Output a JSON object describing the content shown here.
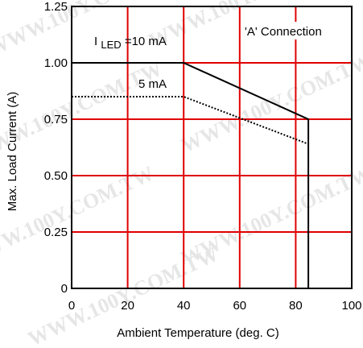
{
  "chart_data": {
    "type": "line",
    "xlabel": "Ambient Temperature (deg. C)",
    "ylabel": "Max. Load Current (A)",
    "xlim": [
      0,
      100
    ],
    "ylim": [
      0,
      1.25
    ],
    "xticks": [
      0,
      20,
      40,
      60,
      80,
      100
    ],
    "yticks": [
      0,
      0.25,
      0.5,
      0.75,
      1.0,
      1.25
    ],
    "xtick_labels": [
      "0",
      "20",
      "40",
      "60",
      "80",
      "100"
    ],
    "ytick_labels": [
      "0",
      "0.25",
      "0.50",
      "0.75",
      "1.00",
      "1.25"
    ],
    "grid": true,
    "grid_color": "#e00000",
    "series": [
      {
        "name": "10 mA",
        "style": "solid",
        "color": "#000000",
        "x": [
          0,
          40,
          84.5,
          84.5
        ],
        "y": [
          1.0,
          1.0,
          0.75,
          0
        ]
      },
      {
        "name": "5 mA",
        "style": "dotted",
        "color": "#000000",
        "x": [
          0,
          40,
          84.5
        ],
        "y": [
          0.85,
          0.85,
          0.64
        ]
      }
    ],
    "annotations": {
      "led_prefix": "I",
      "led_subscript": "LED",
      "led_suffix": "=10 mA",
      "five_ma": "5 mA",
      "connection": "'A' Connection"
    },
    "watermark_text": "WWW.100Y.COM.TW"
  }
}
